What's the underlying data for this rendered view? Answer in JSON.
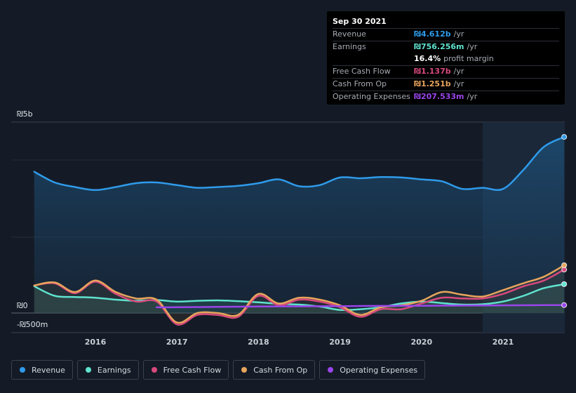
{
  "tooltip": {
    "date": "Sep 30 2021",
    "rows": [
      {
        "label": "Revenue",
        "value": "₪4.612b",
        "unit": "/yr",
        "color": "#2f9bea"
      },
      {
        "label": "Earnings",
        "value": "₪756.256m",
        "unit": "/yr",
        "color": "#5fe3cf"
      },
      {
        "label": "",
        "value": "16.4%",
        "unit": "profit margin",
        "color": "#ffffff"
      },
      {
        "label": "Free Cash Flow",
        "value": "₪1.137b",
        "unit": "/yr",
        "color": "#d7497c"
      },
      {
        "label": "Cash From Op",
        "value": "₪1.251b",
        "unit": "/yr",
        "color": "#e8a55c"
      },
      {
        "label": "Operating Expenses",
        "value": "₪207.533m",
        "unit": "/yr",
        "color": "#9a45ea"
      }
    ]
  },
  "legend": [
    {
      "label": "Revenue",
      "color": "#2f9bea"
    },
    {
      "label": "Earnings",
      "color": "#5fe3cf"
    },
    {
      "label": "Free Cash Flow",
      "color": "#d7497c"
    },
    {
      "label": "Cash From Op",
      "color": "#e8a55c"
    },
    {
      "label": "Operating Expenses",
      "color": "#9a45ea"
    }
  ],
  "chart_data": {
    "type": "line",
    "title": "",
    "ylim": [
      -500,
      5000
    ],
    "y_tick_labels": [
      {
        "label": "₪5b",
        "value": 5000
      },
      {
        "label": "₪0",
        "value": 0
      },
      {
        "label": "-₪500m",
        "value": -500
      }
    ],
    "x_tick_labels": [
      "2016",
      "2017",
      "2018",
      "2019",
      "2020",
      "2021"
    ],
    "x_ticks": [
      2016.0,
      2017.0,
      2018.0,
      2019.0,
      2020.0,
      2021.0
    ],
    "xlim": [
      2015.1,
      2021.75
    ],
    "highlight_from": 2020.75,
    "series": [
      {
        "name": "Revenue",
        "color": "#2f9bea",
        "x": [
          2015.25,
          2015.5,
          2015.75,
          2016.0,
          2016.25,
          2016.5,
          2016.75,
          2017.0,
          2017.25,
          2017.5,
          2017.75,
          2018.0,
          2018.25,
          2018.5,
          2018.75,
          2019.0,
          2019.25,
          2019.5,
          2019.75,
          2020.0,
          2020.25,
          2020.5,
          2020.75,
          2021.0,
          2021.25,
          2021.5,
          2021.75
        ],
        "values": [
          3700,
          3420,
          3300,
          3220,
          3300,
          3400,
          3420,
          3350,
          3280,
          3300,
          3330,
          3400,
          3500,
          3320,
          3350,
          3550,
          3530,
          3560,
          3550,
          3500,
          3450,
          3250,
          3280,
          3250,
          3750,
          4350,
          4612
        ]
      },
      {
        "name": "Earnings",
        "color": "#5fe3cf",
        "x": [
          2015.25,
          2015.5,
          2015.75,
          2016.0,
          2016.25,
          2016.5,
          2016.75,
          2017.0,
          2017.25,
          2017.5,
          2017.75,
          2018.0,
          2018.25,
          2018.5,
          2018.75,
          2019.0,
          2019.25,
          2019.5,
          2019.75,
          2020.0,
          2020.25,
          2020.5,
          2020.75,
          2021.0,
          2021.25,
          2021.5,
          2021.75
        ],
        "values": [
          700,
          450,
          420,
          400,
          350,
          320,
          340,
          300,
          320,
          330,
          310,
          280,
          240,
          220,
          170,
          80,
          100,
          150,
          250,
          300,
          260,
          220,
          230,
          300,
          450,
          650,
          756
        ]
      },
      {
        "name": "Free Cash Flow",
        "color": "#d7497c",
        "x": [
          2015.25,
          2015.5,
          2015.75,
          2016.0,
          2016.25,
          2016.5,
          2016.75,
          2017.0,
          2017.25,
          2017.5,
          2017.75,
          2018.0,
          2018.25,
          2018.5,
          2018.75,
          2019.0,
          2019.25,
          2019.5,
          2019.75,
          2020.0,
          2020.25,
          2020.5,
          2020.75,
          2021.0,
          2021.25,
          2021.5,
          2021.75
        ],
        "values": [
          720,
          780,
          520,
          820,
          500,
          300,
          300,
          -300,
          -50,
          -50,
          -100,
          450,
          200,
          350,
          300,
          150,
          -100,
          100,
          100,
          250,
          400,
          380,
          380,
          500,
          700,
          850,
          1137
        ]
      },
      {
        "name": "Cash From Op",
        "color": "#e8a55c",
        "x": [
          2015.25,
          2015.5,
          2015.75,
          2016.0,
          2016.25,
          2016.5,
          2016.75,
          2017.0,
          2017.25,
          2017.5,
          2017.75,
          2018.0,
          2018.25,
          2018.5,
          2018.75,
          2019.0,
          2019.25,
          2019.5,
          2019.75,
          2020.0,
          2020.25,
          2020.5,
          2020.75,
          2021.0,
          2021.25,
          2021.5,
          2021.75
        ],
        "values": [
          720,
          800,
          550,
          850,
          550,
          380,
          350,
          -250,
          0,
          0,
          -50,
          500,
          250,
          400,
          350,
          200,
          -50,
          150,
          200,
          320,
          550,
          480,
          430,
          600,
          780,
          950,
          1251
        ]
      },
      {
        "name": "Operating Expenses",
        "color": "#9a45ea",
        "x": [
          2016.75,
          2017.0,
          2017.5,
          2018.0,
          2018.5,
          2019.0,
          2019.5,
          2020.0,
          2020.5,
          2021.0,
          2021.5,
          2021.75
        ],
        "values": [
          150,
          150,
          160,
          170,
          175,
          180,
          185,
          190,
          195,
          200,
          205,
          207.533
        ]
      }
    ]
  }
}
